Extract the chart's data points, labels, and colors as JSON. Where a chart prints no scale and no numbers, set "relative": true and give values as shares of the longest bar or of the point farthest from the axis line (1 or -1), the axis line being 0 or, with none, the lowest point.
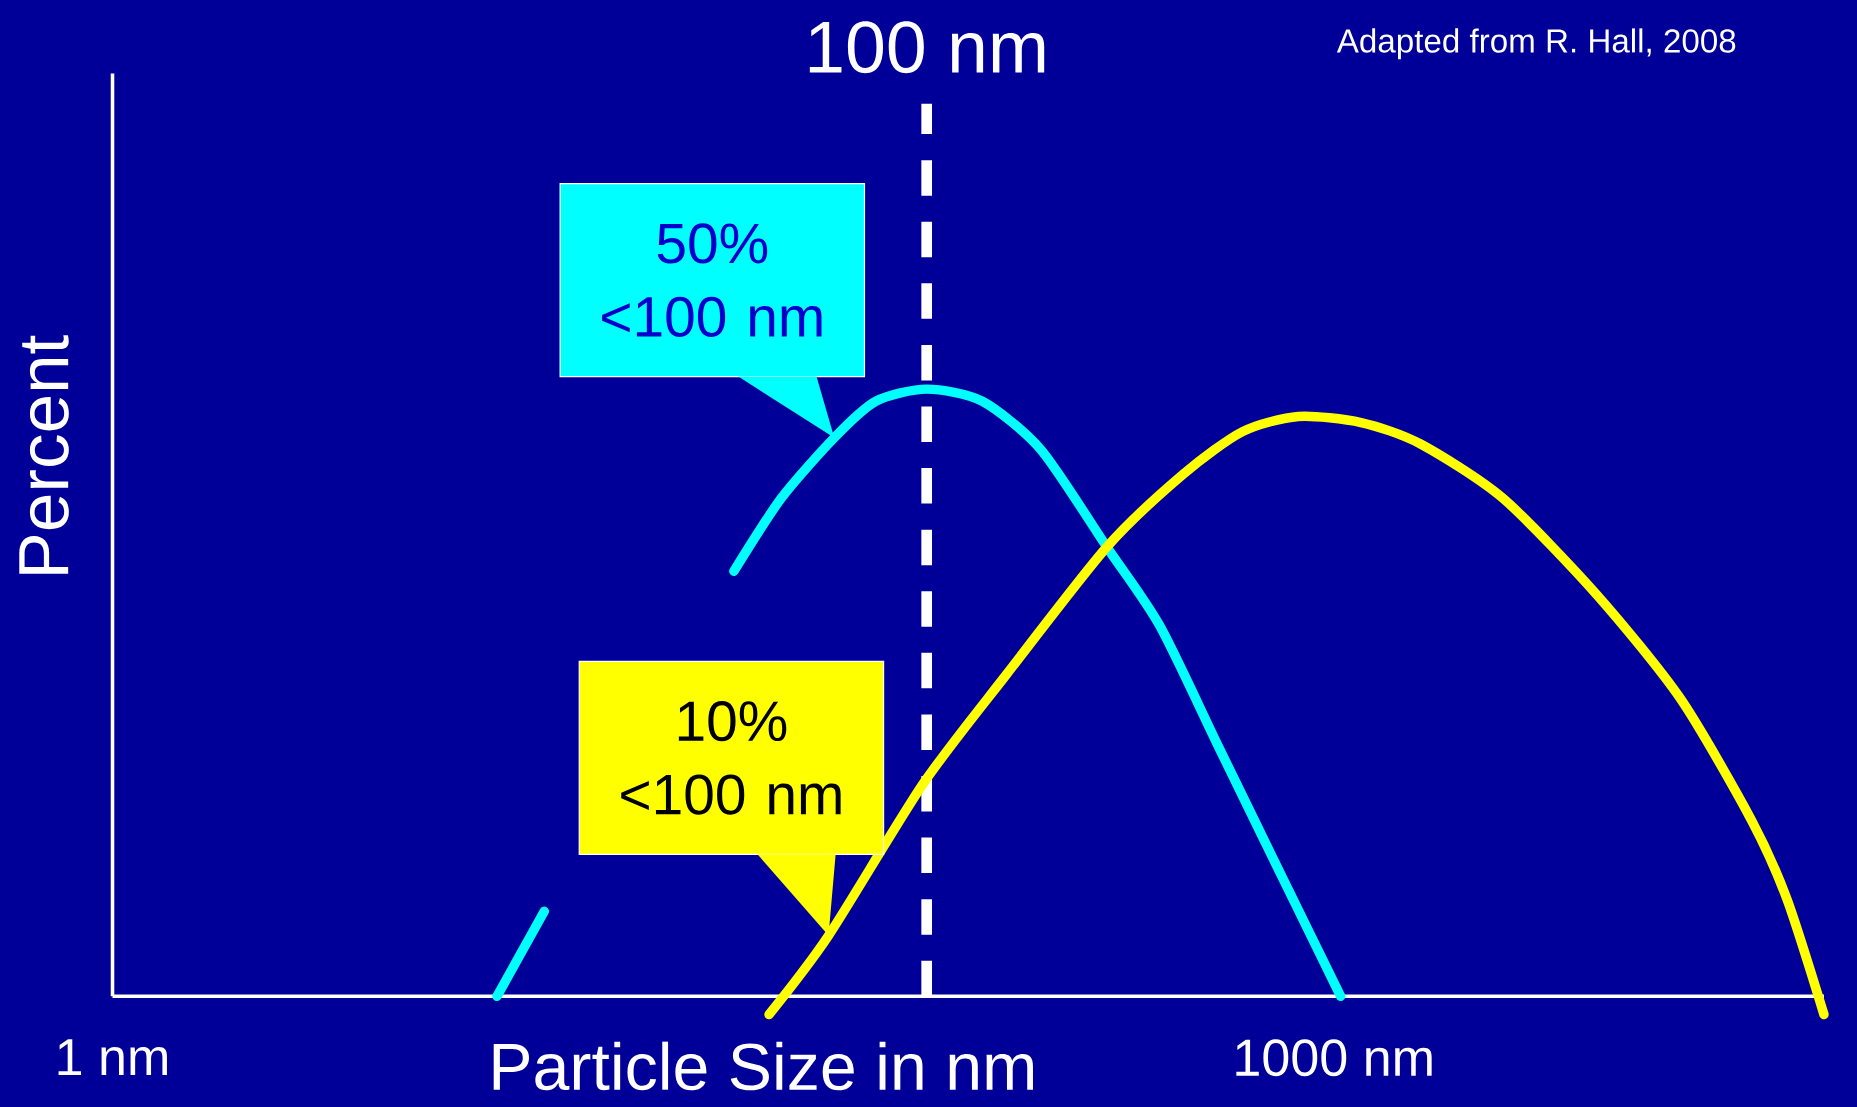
{
  "chart_data": {
    "type": "line",
    "xlabel": "Particle Size in nm",
    "ylabel": "Percent",
    "relative": true,
    "log": "x",
    "xlim": [
      1,
      16000
    ],
    "xticks": [
      {
        "value": 1,
        "label": "1 nm"
      },
      {
        "value": 1000,
        "label": "1000 nm"
      }
    ],
    "series": [
      {
        "color": "#00ffff",
        "x": [
          8.8,
          11.5,
          15.0,
          24.0,
          33.6,
          43.9,
          59.3,
          75.0,
          100,
          137,
          191,
          277,
          374,
          522,
          730,
          1040
        ],
        "values": [
          0,
          0.14,
          null,
          null,
          0.7,
          0.82,
          0.92,
          0.98,
          1,
          0.98,
          0.9,
          0.74,
          0.61,
          0.41,
          0.21,
          0
        ]
      },
      {
        "color": "#ffff00",
        "x": [
          41,
          57.4,
          98,
          157,
          277,
          427,
          597,
          818,
          1167,
          1630,
          2606,
          4446,
          7111,
          10620,
          12980,
          16000
        ],
        "values": [
          -0.03,
          0.1,
          0.35,
          0.53,
          0.74,
          0.86,
          0.93,
          0.955,
          0.945,
          0.91,
          0.82,
          0.66,
          0.49,
          0.29,
          0.16,
          -0.03
        ]
      }
    ],
    "ref_lines": [
      {
        "axis": "x",
        "value": 100,
        "label": "100 nm",
        "color": "#ffffff",
        "line_style": "dashed"
      }
    ],
    "annotations": [
      {
        "text": "50% <100 nm",
        "x": 59.3,
        "y": 0.92
      },
      {
        "text": "10% <100 nm",
        "x": 57.4,
        "y": 0.1
      },
      "Adapted from R. Hall, 2008"
    ]
  }
}
